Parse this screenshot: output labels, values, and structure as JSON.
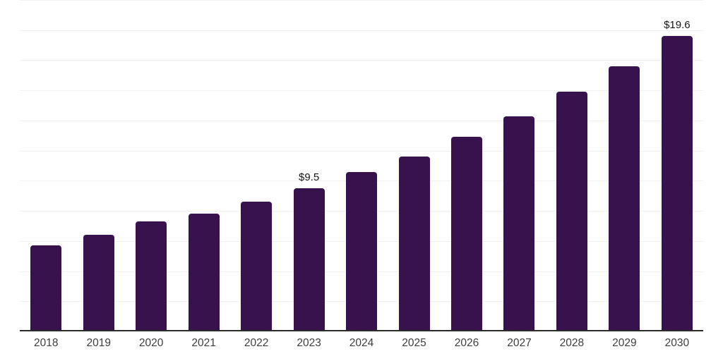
{
  "chart_data": {
    "type": "bar",
    "title": "",
    "xlabel": "",
    "ylabel": "",
    "categories": [
      "2018",
      "2019",
      "2020",
      "2021",
      "2022",
      "2023",
      "2024",
      "2025",
      "2026",
      "2027",
      "2028",
      "2029",
      "2030"
    ],
    "values": [
      5.7,
      6.4,
      7.3,
      7.8,
      8.6,
      9.5,
      10.6,
      11.6,
      12.9,
      14.3,
      15.9,
      17.6,
      19.6
    ],
    "data_labels": [
      "",
      "",
      "",
      "",
      "",
      "$9.5",
      "",
      "",
      "",
      "",
      "",
      "",
      "$19.6"
    ],
    "ylim": [
      0,
      22
    ],
    "gridline_step": 2,
    "grid": "horizontal-only",
    "legend": "none",
    "y_tick_labels_visible": false,
    "colors": {
      "bar": "#37124d",
      "axis_line": "#2b2b2b",
      "gridline": "#f1f1f1",
      "value_label": "#141414",
      "tick_label": "#3d3d3d",
      "background": "#ffffff"
    }
  }
}
